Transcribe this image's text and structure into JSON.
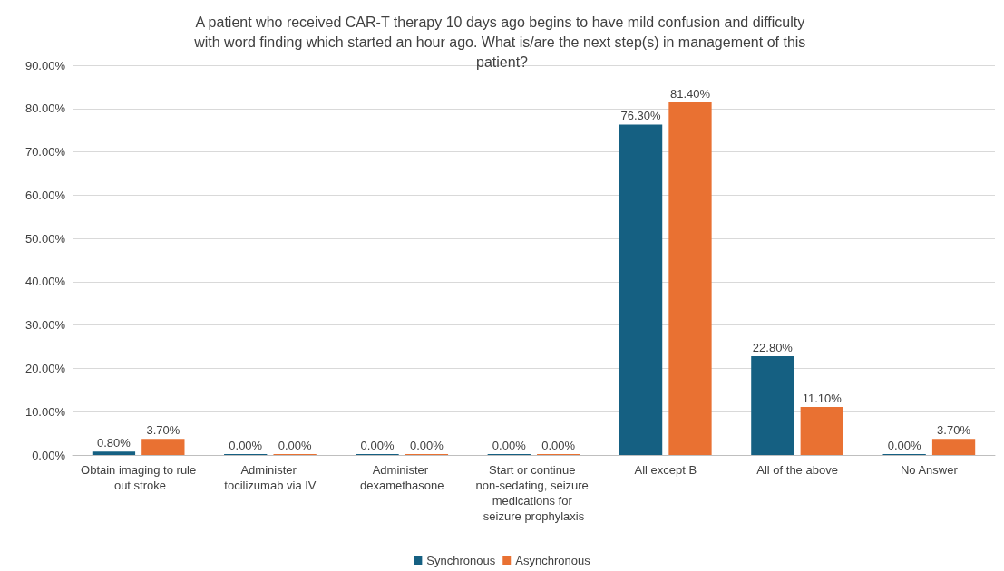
{
  "chart_data": {
    "type": "bar",
    "title": "A patient who received CAR-T therapy 10 days ago begins to have mild confusion and difficulty with word finding which started an hour ago. What is/are the next step(s) in management of this patient?",
    "categories": [
      "Obtain imaging to rule out stroke",
      "Administer tocilizumab via IV",
      "Administer dexamethasone",
      "Start or continue non-sedating, seizure medications for seizure prophylaxis",
      "All except B",
      "All of the above",
      "No Answer"
    ],
    "series": [
      {
        "name": "Synchronous",
        "color": "#156082",
        "values": [
          0.8,
          0,
          0,
          0,
          76.3,
          22.8,
          0
        ],
        "value_labels": [
          "0.80%",
          "0.00%",
          "0.00%",
          "0.00%",
          "76.30%",
          "22.80%",
          "0.00%"
        ]
      },
      {
        "name": "Asynchronous",
        "color": "#e97132",
        "values": [
          3.7,
          0,
          0,
          0,
          81.4,
          11.1,
          3.7
        ],
        "value_labels": [
          "3.70%",
          "0.00%",
          "0.00%",
          "0.00%",
          "81.40%",
          "11.10%",
          "3.70%"
        ]
      }
    ],
    "ylim": [
      0,
      90
    ],
    "yticks": [
      {
        "value": 0,
        "label": "0.00%"
      },
      {
        "value": 10,
        "label": "10.00%"
      },
      {
        "value": 20,
        "label": "20.00%"
      },
      {
        "value": 30,
        "label": "30.00%"
      },
      {
        "value": 40,
        "label": "40.00%"
      },
      {
        "value": 50,
        "label": "50.00%"
      },
      {
        "value": 60,
        "label": "60.00%"
      },
      {
        "value": 70,
        "label": "70.00%"
      },
      {
        "value": 80,
        "label": "80.00%"
      },
      {
        "value": 90,
        "label": "90.00%"
      }
    ],
    "grid": "y",
    "legend": "bottom"
  }
}
